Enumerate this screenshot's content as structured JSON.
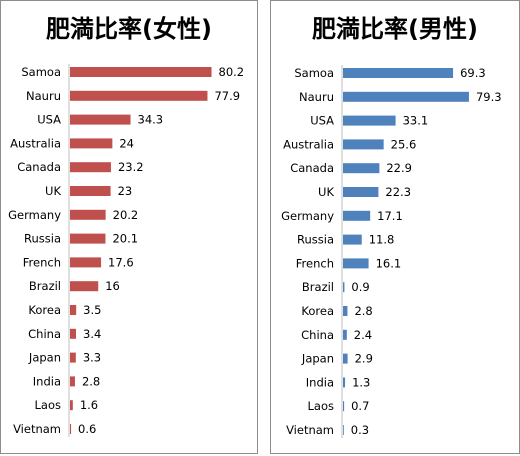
{
  "chart_data": [
    {
      "type": "bar",
      "orientation": "horizontal",
      "title": "肥満比率(女性)",
      "color": "#c0504d",
      "categories": [
        "Samoa",
        "Nauru",
        "USA",
        "Australia",
        "Canada",
        "UK",
        "Germany",
        "Russia",
        "French",
        "Brazil",
        "Korea",
        "China",
        "Japan",
        "India",
        "Laos",
        "Vietnam"
      ],
      "values": [
        80.2,
        77.9,
        34.3,
        24,
        23.2,
        23,
        20.2,
        20.1,
        17.6,
        16,
        3.5,
        3.4,
        3.3,
        2.8,
        1.6,
        0.6
      ],
      "value_labels": [
        "80.2",
        "77.9",
        "34.3",
        "24",
        "23.2",
        "23",
        "20.2",
        "20.1",
        "17.6",
        "16",
        "3.5",
        "3.4",
        "3.3",
        "2.8",
        "1.6",
        "0.6"
      ],
      "xlim": [
        0,
        85
      ],
      "grid": false
    },
    {
      "type": "bar",
      "orientation": "horizontal",
      "title": "肥満比率(男性)",
      "color": "#4f81bd",
      "categories": [
        "Samoa",
        "Nauru",
        "USA",
        "Australia",
        "Canada",
        "UK",
        "Germany",
        "Russia",
        "French",
        "Brazil",
        "Korea",
        "China",
        "Japan",
        "India",
        "Laos",
        "Vietnam"
      ],
      "values": [
        69.3,
        79.3,
        33.1,
        25.6,
        22.9,
        22.3,
        17.1,
        11.8,
        16.1,
        0.9,
        2.8,
        2.4,
        2.9,
        1.3,
        0.7,
        0.3
      ],
      "value_labels": [
        "69.3",
        "79.3",
        "33.1",
        "25.6",
        "22.9",
        "22.3",
        "17.1",
        "11.8",
        "16.1",
        "0.9",
        "2.8",
        "2.4",
        "2.9",
        "1.3",
        "0.7",
        "0.3"
      ],
      "xlim": [
        0,
        85
      ],
      "grid": false
    }
  ]
}
